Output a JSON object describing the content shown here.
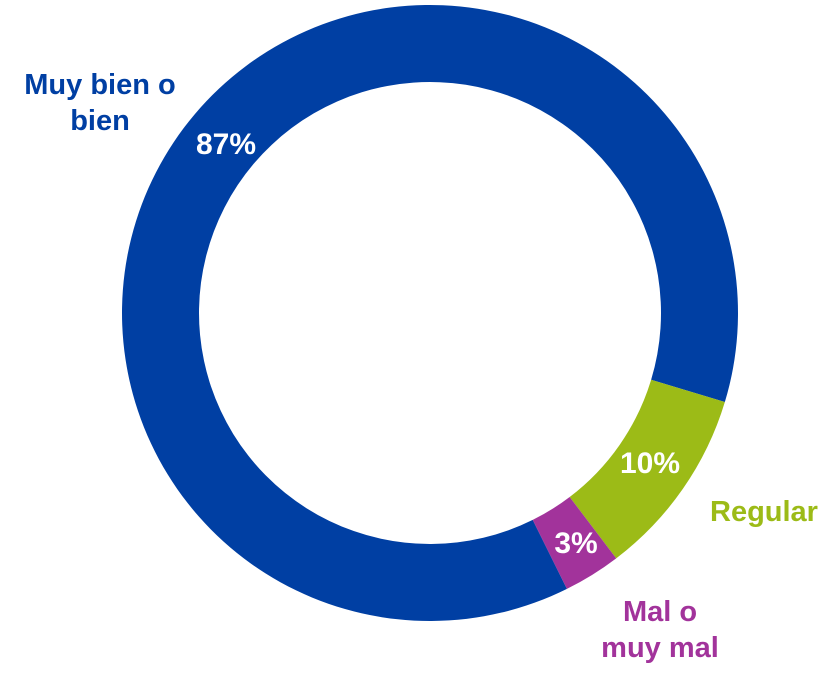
{
  "chart_data": {
    "type": "donut",
    "categories": [
      "Muy bien o bien",
      "Regular",
      "Mal o muy mal"
    ],
    "values": [
      87,
      10,
      3
    ],
    "value_labels": [
      "87%",
      "10%",
      "3%"
    ],
    "colors": [
      "#003fa3",
      "#9cbb17",
      "#a2339b"
    ]
  }
}
